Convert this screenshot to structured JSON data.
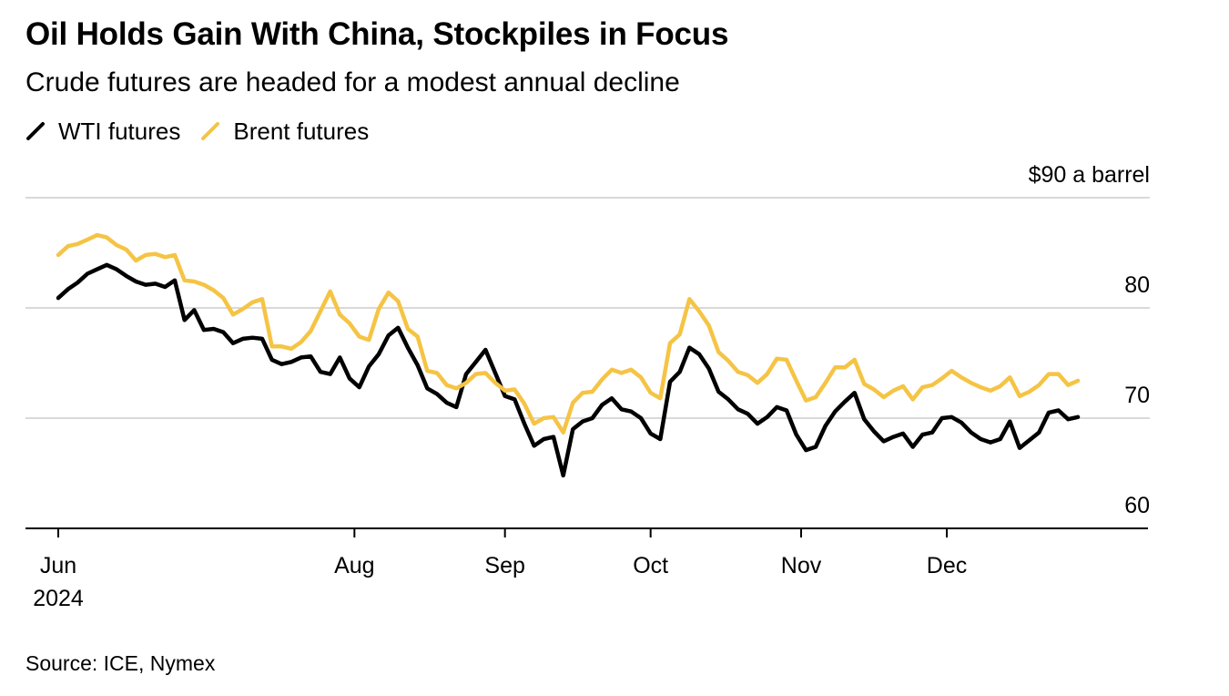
{
  "title": "Oil Holds Gain With China, Stockpiles in Focus",
  "subtitle": "Crude futures are headed for a modest annual decline",
  "source": "Source: ICE, Nymex",
  "colors": {
    "wti": "#000000",
    "brent": "#f5c445",
    "grid": "#d9d9d9",
    "axis": "#000000"
  },
  "chart_data": {
    "type": "line",
    "y_unit_label": "$90 a barrel",
    "ylim": [
      60,
      90
    ],
    "yticks": [
      {
        "value": 90,
        "label": "$90 a barrel"
      },
      {
        "value": 80,
        "label": "80"
      },
      {
        "value": 70,
        "label": "70"
      },
      {
        "value": 60,
        "label": "60"
      }
    ],
    "xlim": [
      "2024-06-01",
      "2024-12-31"
    ],
    "xticks": [
      {
        "date": "2024-06-01",
        "label": "Jun",
        "sublabel": "2024"
      },
      {
        "date": "2024-08-01",
        "label": "Aug",
        "sublabel": ""
      },
      {
        "date": "2024-09-01",
        "label": "Sep",
        "sublabel": ""
      },
      {
        "date": "2024-10-01",
        "label": "Oct",
        "sublabel": ""
      },
      {
        "date": "2024-11-01",
        "label": "Nov",
        "sublabel": ""
      },
      {
        "date": "2024-12-01",
        "label": "Dec",
        "sublabel": ""
      }
    ],
    "grid": true,
    "legend_position": "top-left",
    "x": [
      "2024-06-01",
      "2024-06-03",
      "2024-06-05",
      "2024-06-07",
      "2024-06-09",
      "2024-06-11",
      "2024-06-13",
      "2024-06-15",
      "2024-06-17",
      "2024-06-19",
      "2024-06-21",
      "2024-06-23",
      "2024-06-25",
      "2024-06-27",
      "2024-06-29",
      "2024-07-01",
      "2024-07-03",
      "2024-07-05",
      "2024-07-07",
      "2024-07-09",
      "2024-07-11",
      "2024-07-13",
      "2024-07-15",
      "2024-07-17",
      "2024-07-19",
      "2024-07-21",
      "2024-07-23",
      "2024-07-25",
      "2024-07-27",
      "2024-07-29",
      "2024-07-31",
      "2024-08-02",
      "2024-08-04",
      "2024-08-06",
      "2024-08-08",
      "2024-08-10",
      "2024-08-12",
      "2024-08-14",
      "2024-08-16",
      "2024-08-18",
      "2024-08-20",
      "2024-08-22",
      "2024-08-24",
      "2024-08-26",
      "2024-08-28",
      "2024-08-30",
      "2024-09-01",
      "2024-09-03",
      "2024-09-05",
      "2024-09-07",
      "2024-09-09",
      "2024-09-11",
      "2024-09-13",
      "2024-09-15",
      "2024-09-17",
      "2024-09-19",
      "2024-09-21",
      "2024-09-23",
      "2024-09-25",
      "2024-09-27",
      "2024-09-29",
      "2024-10-01",
      "2024-10-03",
      "2024-10-05",
      "2024-10-07",
      "2024-10-09",
      "2024-10-11",
      "2024-10-13",
      "2024-10-15",
      "2024-10-17",
      "2024-10-19",
      "2024-10-21",
      "2024-10-23",
      "2024-10-25",
      "2024-10-27",
      "2024-10-29",
      "2024-10-31",
      "2024-11-02",
      "2024-11-04",
      "2024-11-06",
      "2024-11-08",
      "2024-11-10",
      "2024-11-12",
      "2024-11-14",
      "2024-11-16",
      "2024-11-18",
      "2024-11-20",
      "2024-11-22",
      "2024-11-24",
      "2024-11-26",
      "2024-11-28",
      "2024-11-30",
      "2024-12-02",
      "2024-12-04",
      "2024-12-06",
      "2024-12-08",
      "2024-12-10",
      "2024-12-12",
      "2024-12-14",
      "2024-12-16",
      "2024-12-18",
      "2024-12-20",
      "2024-12-22",
      "2024-12-24",
      "2024-12-26",
      "2024-12-28"
    ],
    "series": [
      {
        "key": "wti",
        "name": "WTI futures",
        "values": [
          80.9,
          81.7,
          82.3,
          83.1,
          83.5,
          83.9,
          83.5,
          82.9,
          82.4,
          82.1,
          82.2,
          81.9,
          82.5,
          78.9,
          79.8,
          78.0,
          78.1,
          77.8,
          76.8,
          77.2,
          77.3,
          77.2,
          75.3,
          74.9,
          75.1,
          75.5,
          75.6,
          74.2,
          74.0,
          75.5,
          73.6,
          72.8,
          74.7,
          75.8,
          77.5,
          78.2,
          76.4,
          74.8,
          72.7,
          72.2,
          71.4,
          71.0,
          74.0,
          75.1,
          76.2,
          74.1,
          72.0,
          71.7,
          69.5,
          67.5,
          68.1,
          68.3,
          64.8,
          69.0,
          69.7,
          70.0,
          71.2,
          71.8,
          70.8,
          70.6,
          70.0,
          68.6,
          68.1,
          73.3,
          74.2,
          76.4,
          75.8,
          74.5,
          72.4,
          71.7,
          70.8,
          70.4,
          69.5,
          70.1,
          71.0,
          70.7,
          68.5,
          67.1,
          67.4,
          69.3,
          70.6,
          71.5,
          72.3,
          69.9,
          68.8,
          67.9,
          68.3,
          68.6,
          67.4,
          68.5,
          68.7,
          70.0,
          70.1,
          69.6,
          68.7,
          68.1,
          67.8,
          68.1,
          69.7,
          67.3,
          68.0,
          68.7,
          70.5,
          70.7,
          69.9,
          70.1
        ],
        "show_label": false
      },
      {
        "key": "brent",
        "name": "Brent futures",
        "values": [
          84.8,
          85.6,
          85.8,
          86.2,
          86.6,
          86.4,
          85.7,
          85.3,
          84.3,
          84.8,
          84.9,
          84.6,
          84.8,
          82.5,
          82.4,
          82.1,
          81.6,
          80.9,
          79.4,
          79.9,
          80.5,
          80.8,
          76.5,
          76.5,
          76.3,
          76.9,
          77.9,
          79.7,
          81.5,
          79.4,
          78.6,
          77.4,
          77.1,
          79.9,
          81.4,
          80.6,
          78.1,
          77.4,
          74.3,
          74.1,
          73.0,
          72.7,
          73.2,
          74.0,
          74.1,
          73.2,
          72.5,
          72.6,
          71.3,
          69.5,
          70.0,
          70.1,
          68.7,
          71.4,
          72.3,
          72.4,
          73.5,
          74.4,
          74.1,
          74.4,
          73.7,
          72.3,
          71.8,
          76.8,
          77.6,
          80.8,
          79.7,
          78.4,
          76.0,
          75.2,
          74.2,
          73.9,
          73.2,
          74.0,
          75.4,
          75.3,
          73.4,
          71.6,
          71.9,
          73.2,
          74.6,
          74.6,
          75.3,
          73.1,
          72.6,
          71.9,
          72.5,
          72.9,
          71.7,
          72.8,
          73.0,
          73.6,
          74.3,
          73.7,
          73.2,
          72.8,
          72.5,
          72.9,
          73.7,
          72.0,
          72.4,
          73.0,
          74.0,
          74.0,
          73.0,
          73.4
        ],
        "show_label": false
      }
    ]
  }
}
